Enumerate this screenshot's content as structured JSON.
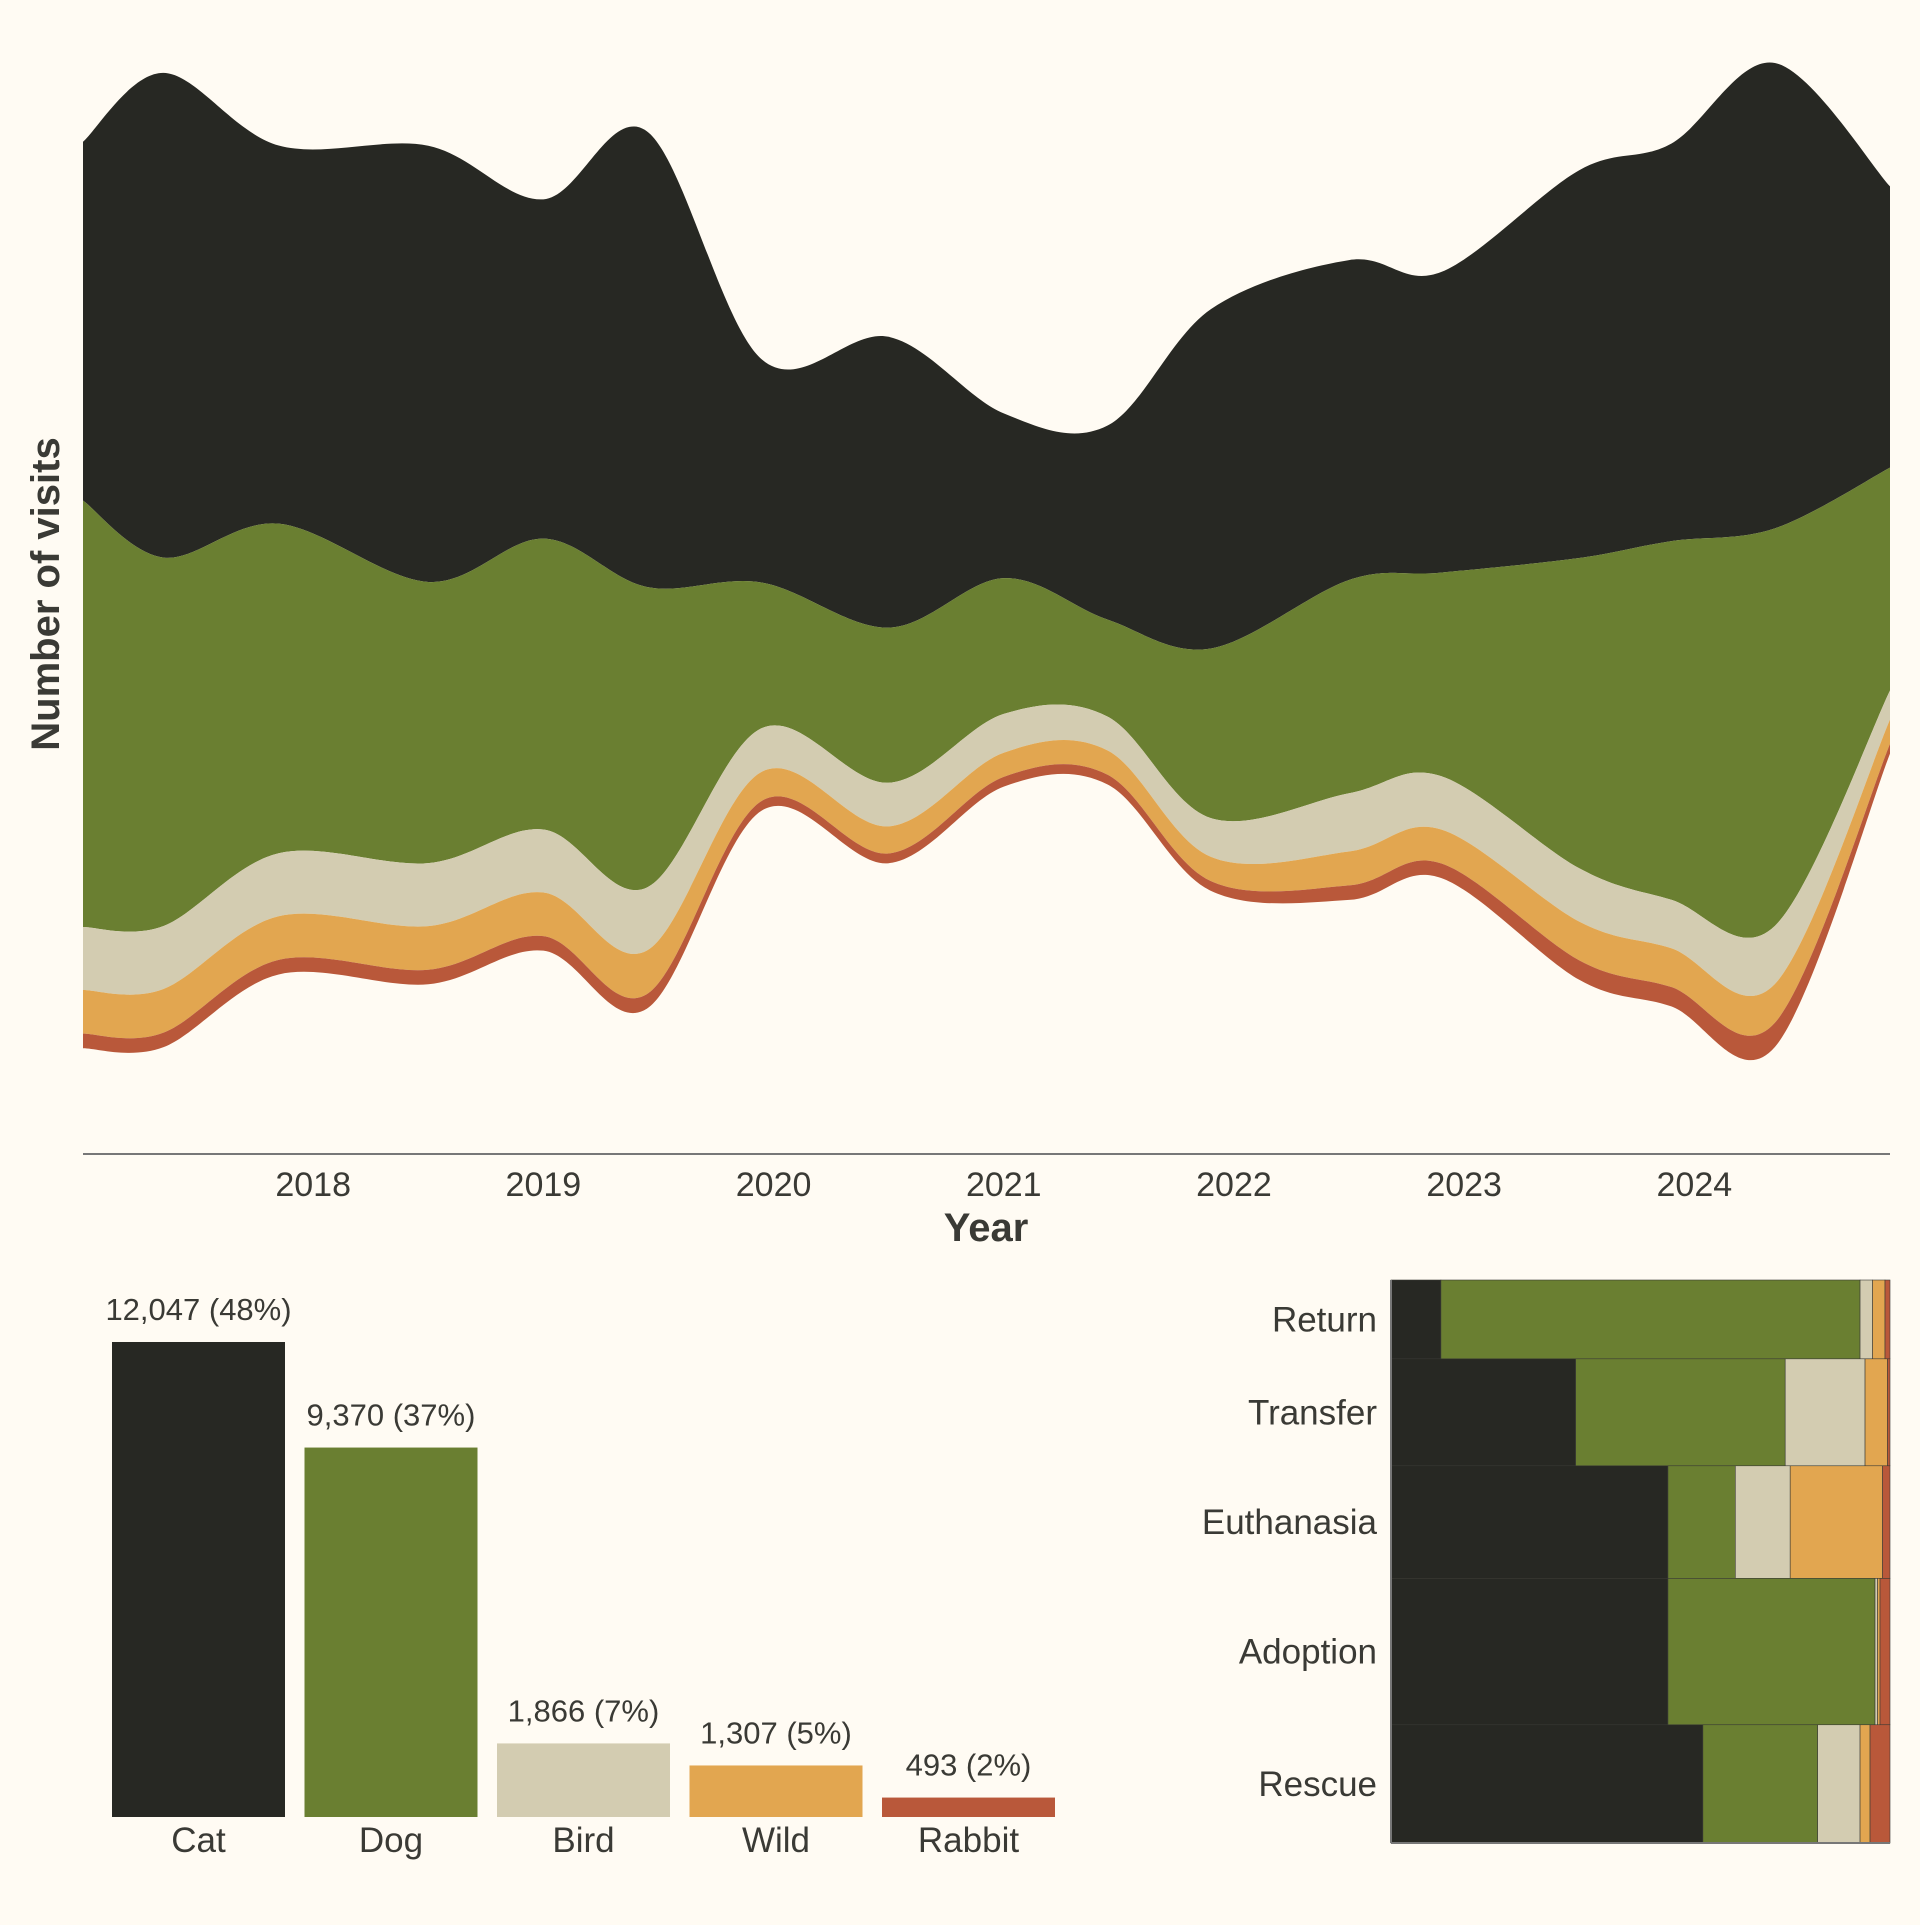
{
  "colors": {
    "background": "#fffbf3",
    "Cat": "#272823",
    "Dog": "#6a7f31",
    "Bird": "#d3ccb1",
    "Wild": "#e2a650",
    "Rabbit": "#b9583a",
    "axis": "#777777",
    "text": "#3a3a35"
  },
  "chart_data": [
    {
      "type": "area",
      "subtype": "streamgraph",
      "xlabel": "Year",
      "ylabel": "Number of visits",
      "x_ticks": [
        "2018",
        "2019",
        "2020",
        "2021",
        "2022",
        "2023",
        "2024"
      ],
      "x": [
        2017.0,
        2017.35,
        2017.85,
        2018.5,
        2019.0,
        2019.45,
        2019.95,
        2020.5,
        2021.0,
        2021.45,
        2021.9,
        2022.5,
        2022.9,
        2023.5,
        2023.9,
        2024.35,
        2024.85
      ],
      "series": [
        {
          "name": "Cat",
          "values": [
            370,
            500,
            390,
            450,
            350,
            470,
            230,
            300,
            170,
            200,
            350,
            330,
            310,
            400,
            410,
            480,
            290
          ]
        },
        {
          "name": "Dog",
          "values": [
            440,
            380,
            340,
            290,
            300,
            310,
            150,
            160,
            140,
            100,
            175,
            220,
            210,
            320,
            370,
            410,
            230
          ]
        },
        {
          "name": "Bird",
          "values": [
            65,
            65,
            65,
            65,
            65,
            65,
            45,
            45,
            40,
            35,
            40,
            60,
            55,
            55,
            50,
            60,
            30
          ]
        },
        {
          "name": "Wild",
          "values": [
            45,
            45,
            45,
            45,
            45,
            45,
            30,
            28,
            25,
            25,
            25,
            35,
            35,
            40,
            40,
            40,
            25
          ]
        },
        {
          "name": "Rabbit",
          "values": [
            15,
            15,
            15,
            15,
            15,
            15,
            10,
            10,
            10,
            10,
            10,
            15,
            15,
            20,
            20,
            25,
            10
          ]
        }
      ],
      "baseline": "wiggle"
    },
    {
      "type": "bar",
      "categories": [
        "Cat",
        "Dog",
        "Bird",
        "Wild",
        "Rabbit"
      ],
      "values": [
        12047,
        9370,
        1866,
        1307,
        493
      ],
      "labels": [
        "12,047 (48%)",
        "9,370 (37%)",
        "1,866 (7%)",
        "1,307 (5%)",
        "493 (2%)"
      ]
    },
    {
      "type": "bar",
      "subtype": "mosaic",
      "orientation": "horizontal",
      "series_names": [
        "Cat",
        "Dog",
        "Bird",
        "Wild",
        "Rabbit"
      ],
      "rows": [
        {
          "label": "Return",
          "share_of_total": 0.14,
          "shares": [
            0.1,
            0.84,
            0.025,
            0.025,
            0.01
          ]
        },
        {
          "label": "Transfer",
          "share_of_total": 0.19,
          "shares": [
            0.37,
            0.42,
            0.16,
            0.045,
            0.005
          ]
        },
        {
          "label": "Euthanasia",
          "share_of_total": 0.2,
          "shares": [
            0.555,
            0.135,
            0.11,
            0.185,
            0.015
          ]
        },
        {
          "label": "Adoption",
          "share_of_total": 0.26,
          "shares": [
            0.555,
            0.415,
            0.005,
            0.005,
            0.02
          ]
        },
        {
          "label": "Rescue",
          "share_of_total": 0.21,
          "shares": [
            0.625,
            0.23,
            0.085,
            0.02,
            0.04
          ]
        }
      ]
    }
  ]
}
